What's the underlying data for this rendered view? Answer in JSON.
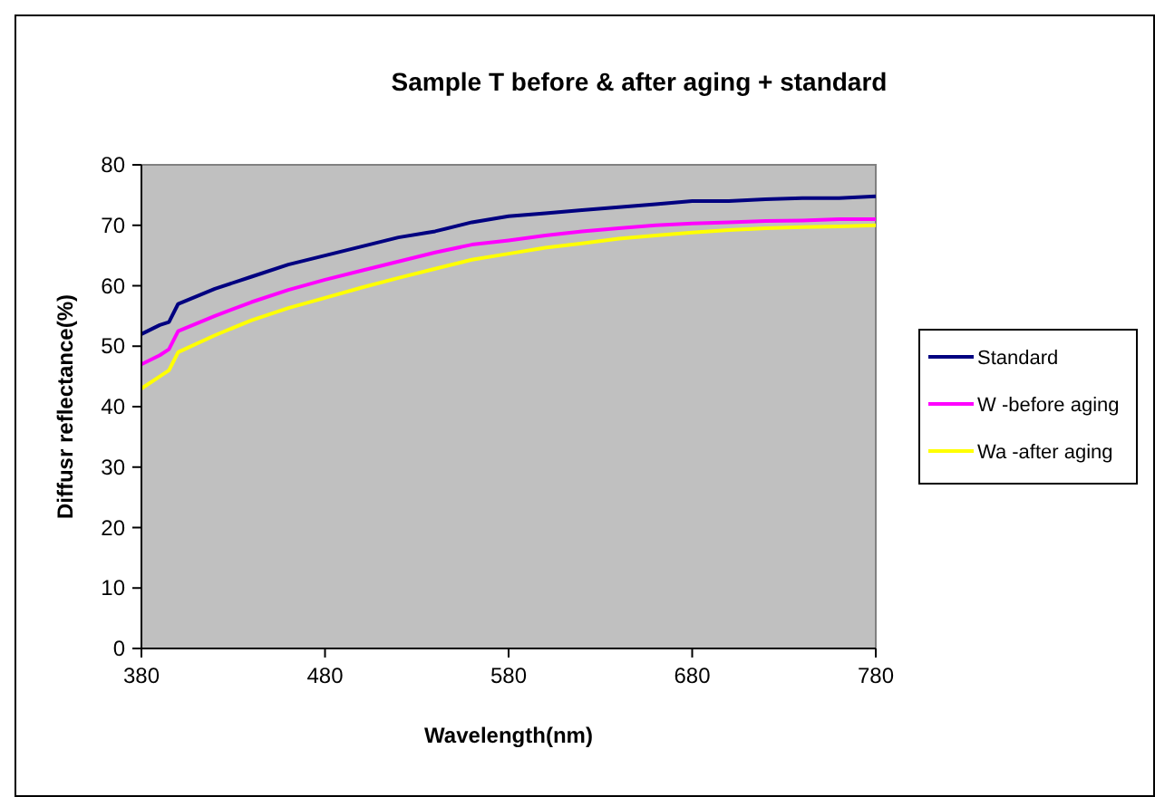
{
  "chart_data": {
    "type": "line",
    "title": "Sample T before & after aging + standard",
    "xlabel": "Wavelength(nm)",
    "ylabel": "Diffusr reflectance(%)",
    "x": [
      380,
      390,
      395,
      400,
      420,
      440,
      460,
      480,
      500,
      520,
      540,
      560,
      580,
      600,
      620,
      640,
      660,
      680,
      700,
      720,
      740,
      760,
      780
    ],
    "series": [
      {
        "name": "Standard",
        "color": "#000080",
        "values": [
          52,
          53.5,
          54,
          57,
          59.5,
          61.5,
          63.5,
          65,
          66.5,
          68,
          69,
          70.5,
          71.5,
          72,
          72.5,
          73,
          73.5,
          74,
          74,
          74.3,
          74.5,
          74.5,
          74.8
        ]
      },
      {
        "name": "W -before aging",
        "color": "#ff00ff",
        "values": [
          47,
          48.5,
          49.5,
          52.5,
          55,
          57.3,
          59.3,
          61,
          62.5,
          64,
          65.5,
          66.8,
          67.5,
          68.3,
          69,
          69.5,
          70,
          70.3,
          70.5,
          70.7,
          70.8,
          71,
          71
        ]
      },
      {
        "name": "Wa -after aging",
        "color": "#ffff00",
        "values": [
          43,
          45,
          46,
          49,
          51.8,
          54.3,
          56.3,
          58,
          59.7,
          61.3,
          62.8,
          64.3,
          65.3,
          66.3,
          67,
          67.8,
          68.3,
          68.8,
          69.2,
          69.5,
          69.7,
          69.8,
          70
        ]
      }
    ],
    "xlim": [
      380,
      780
    ],
    "xticks": [
      380,
      480,
      580,
      680,
      780
    ],
    "ylim": [
      0,
      80
    ],
    "yticks": [
      0,
      10,
      20,
      30,
      40,
      50,
      60,
      70,
      80
    ],
    "grid": false,
    "legend": "right",
    "marker": "none",
    "line_style": "solid"
  }
}
